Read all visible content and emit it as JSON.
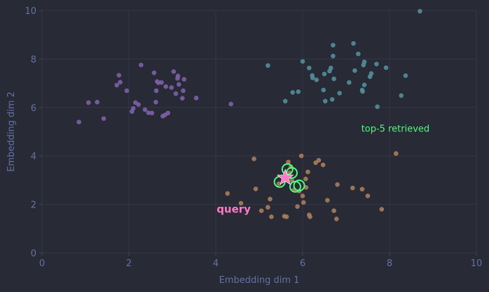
{
  "chart_data": {
    "type": "scatter",
    "xlabel": "Embedding dim 1",
    "ylabel": "Embedding dim 2",
    "xlim": [
      0,
      10
    ],
    "ylim": [
      0,
      10
    ],
    "xticks": [
      0,
      2,
      4,
      6,
      8,
      10
    ],
    "yticks": [
      0,
      2,
      4,
      6,
      8,
      10
    ],
    "grid": true,
    "colors": {
      "background": "#282a36",
      "grid": "#343746",
      "axis": "#44475a",
      "text": "#6272a4",
      "cluster_purple": "#7d5fa8",
      "cluster_teal": "#4f8f9b",
      "cluster_orange": "#a97d5a",
      "retrieved_ring": "#50fa7b",
      "query_star": "#ff79c6"
    },
    "series": [
      {
        "color": "#7d5fa8",
        "points": [
          [
            0.85,
            5.4
          ],
          [
            1.07,
            6.2
          ],
          [
            1.27,
            6.22
          ],
          [
            1.42,
            5.54
          ],
          [
            1.72,
            6.92
          ],
          [
            1.77,
            7.33
          ],
          [
            1.8,
            7.04
          ],
          [
            1.95,
            6.69
          ],
          [
            2.07,
            5.83
          ],
          [
            2.1,
            5.96
          ],
          [
            2.15,
            6.2
          ],
          [
            2.22,
            6.12
          ],
          [
            2.28,
            7.75
          ],
          [
            2.37,
            5.91
          ],
          [
            2.45,
            5.78
          ],
          [
            2.53,
            5.77
          ],
          [
            2.58,
            7.43
          ],
          [
            2.62,
            6.22
          ],
          [
            2.63,
            6.69
          ],
          [
            2.65,
            7.07
          ],
          [
            2.68,
            7.02
          ],
          [
            2.75,
            7.03
          ],
          [
            2.78,
            5.64
          ],
          [
            2.83,
            5.69
          ],
          [
            2.85,
            6.86
          ],
          [
            2.9,
            5.77
          ],
          [
            2.98,
            6.82
          ],
          [
            3.03,
            7.48
          ],
          [
            3.08,
            6.57
          ],
          [
            3.12,
            7.2
          ],
          [
            3.13,
            7.3
          ],
          [
            3.15,
            6.95
          ],
          [
            3.23,
            6.38
          ],
          [
            3.25,
            6.69
          ],
          [
            3.27,
            7.16
          ],
          [
            3.55,
            6.39
          ],
          [
            4.35,
            6.14
          ]
        ]
      },
      {
        "color": "#4f8f9b",
        "points": [
          [
            5.2,
            7.73
          ],
          [
            5.6,
            6.26
          ],
          [
            5.77,
            6.62
          ],
          [
            5.9,
            6.65
          ],
          [
            6.0,
            7.9
          ],
          [
            6.15,
            7.63
          ],
          [
            6.22,
            7.32
          ],
          [
            6.23,
            7.22
          ],
          [
            6.32,
            7.14
          ],
          [
            6.48,
            6.72
          ],
          [
            6.5,
            7.38
          ],
          [
            6.52,
            6.26
          ],
          [
            6.62,
            7.5
          ],
          [
            6.65,
            7.63
          ],
          [
            6.68,
            6.33
          ],
          [
            6.7,
            8.57
          ],
          [
            6.7,
            8.12
          ],
          [
            6.72,
            7.18
          ],
          [
            6.85,
            6.59
          ],
          [
            7.07,
            7.03
          ],
          [
            7.17,
            8.64
          ],
          [
            7.2,
            7.52
          ],
          [
            7.28,
            8.21
          ],
          [
            7.37,
            6.72
          ],
          [
            7.38,
            6.66
          ],
          [
            7.4,
            7.75
          ],
          [
            7.42,
            6.93
          ],
          [
            7.42,
            7.88
          ],
          [
            7.55,
            7.27
          ],
          [
            7.58,
            7.4
          ],
          [
            7.7,
            7.79
          ],
          [
            7.72,
            6.03
          ],
          [
            7.92,
            7.64
          ],
          [
            8.27,
            6.49
          ],
          [
            8.37,
            7.31
          ],
          [
            8.7,
            9.97
          ]
        ]
      },
      {
        "color": "#a97d5a",
        "points": [
          [
            4.27,
            2.45
          ],
          [
            4.58,
            2.05
          ],
          [
            4.88,
            3.88
          ],
          [
            4.92,
            2.64
          ],
          [
            5.05,
            1.74
          ],
          [
            5.2,
            1.88
          ],
          [
            5.25,
            2.22
          ],
          [
            5.28,
            1.49
          ],
          [
            5.45,
            2.85
          ],
          [
            5.58,
            1.51
          ],
          [
            5.63,
            1.49
          ],
          [
            5.65,
            3.2
          ],
          [
            5.67,
            3.75
          ],
          [
            5.7,
            3.3
          ],
          [
            5.73,
            3.55
          ],
          [
            5.75,
            3.0
          ],
          [
            5.8,
            2.6
          ],
          [
            5.88,
            1.91
          ],
          [
            5.92,
            2.55
          ],
          [
            5.97,
            4.0
          ],
          [
            6.0,
            2.35
          ],
          [
            6.02,
            2.08
          ],
          [
            6.07,
            3.05
          ],
          [
            6.08,
            2.7
          ],
          [
            6.12,
            3.34
          ],
          [
            6.15,
            1.57
          ],
          [
            6.17,
            1.49
          ],
          [
            6.3,
            3.72
          ],
          [
            6.37,
            3.82
          ],
          [
            6.47,
            3.63
          ],
          [
            6.57,
            2.17
          ],
          [
            6.72,
            1.74
          ],
          [
            6.78,
            1.4
          ],
          [
            6.8,
            2.82
          ],
          [
            7.15,
            2.68
          ],
          [
            7.37,
            2.63
          ],
          [
            7.5,
            2.35
          ],
          [
            7.82,
            1.8
          ],
          [
            8.15,
            4.1
          ]
        ]
      }
    ],
    "retrieved": [
      [
        5.47,
        2.93
      ],
      [
        5.65,
        3.45
      ],
      [
        5.75,
        3.3
      ],
      [
        5.83,
        2.73
      ],
      [
        5.92,
        2.78
      ]
    ],
    "query": {
      "x": 5.6,
      "y": 3.1,
      "label": "query"
    },
    "annotations": [
      {
        "text": "top-5 retrieved",
        "x": 7.35,
        "y": 5.0,
        "color": "#50fa7b"
      }
    ]
  }
}
